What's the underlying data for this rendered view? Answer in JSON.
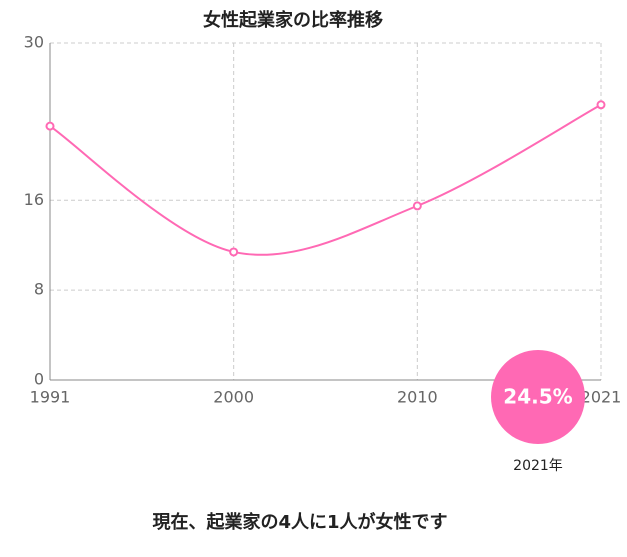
{
  "chart_data": {
    "type": "line",
    "title": "女性起業家の比率推移",
    "categories": [
      "1991",
      "2000",
      "2010",
      "2021"
    ],
    "series": [
      {
        "name": "女性起業家の比率",
        "color": "#ff69b4",
        "values": [
          22.6,
          11.4,
          15.5,
          24.5
        ]
      }
    ],
    "value_labels": [
      null,
      null,
      null,
      "24.5%"
    ],
    "annotation": "2021年",
    "note": "現在、起業家の4人に1人が女性です",
    "ylim": [
      0,
      30
    ],
    "yticks": [
      0,
      8,
      16,
      30
    ],
    "grid": true
  }
}
